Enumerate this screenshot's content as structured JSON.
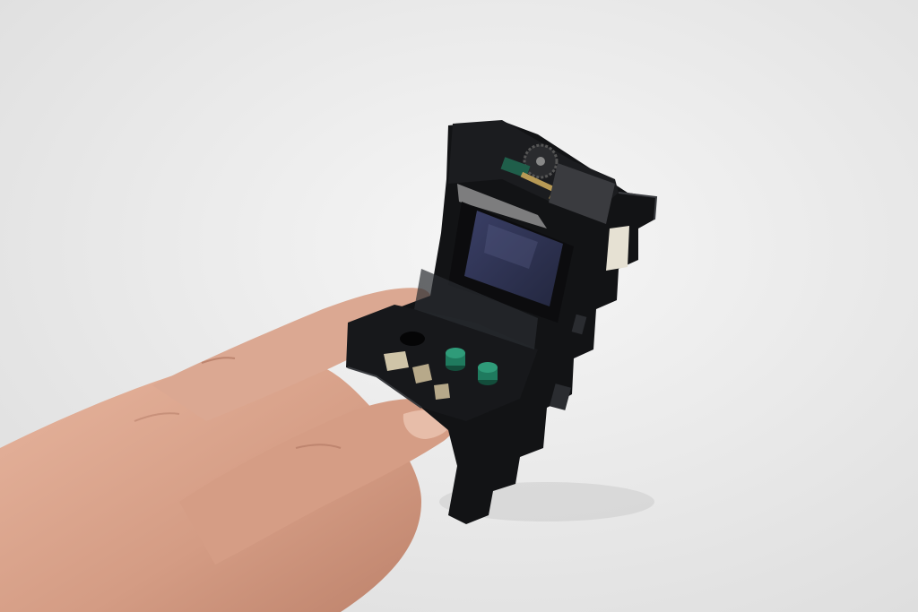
{
  "photo": {
    "subject": "",
    "colors": {
      "background_light": "#f4f4f4",
      "background_dark": "#e2e2e2",
      "plastic": "#111214",
      "plastic_edge": "#2a2c30",
      "screen": "#2b2f4e",
      "screen_glare": "#5a5f86",
      "button": "#1f7a5e",
      "button_top": "#2f9b79",
      "skin": "#d9a48c",
      "skin_shadow": "#b87c66",
      "skin_light": "#e8bca6",
      "metal": "#b7a98a",
      "white_tab": "#e6e1d3"
    },
    "icons": {
      "screen": "lcd-screen-icon",
      "buttons": "arcade-button-icon",
      "gear": "gear-icon"
    }
  }
}
